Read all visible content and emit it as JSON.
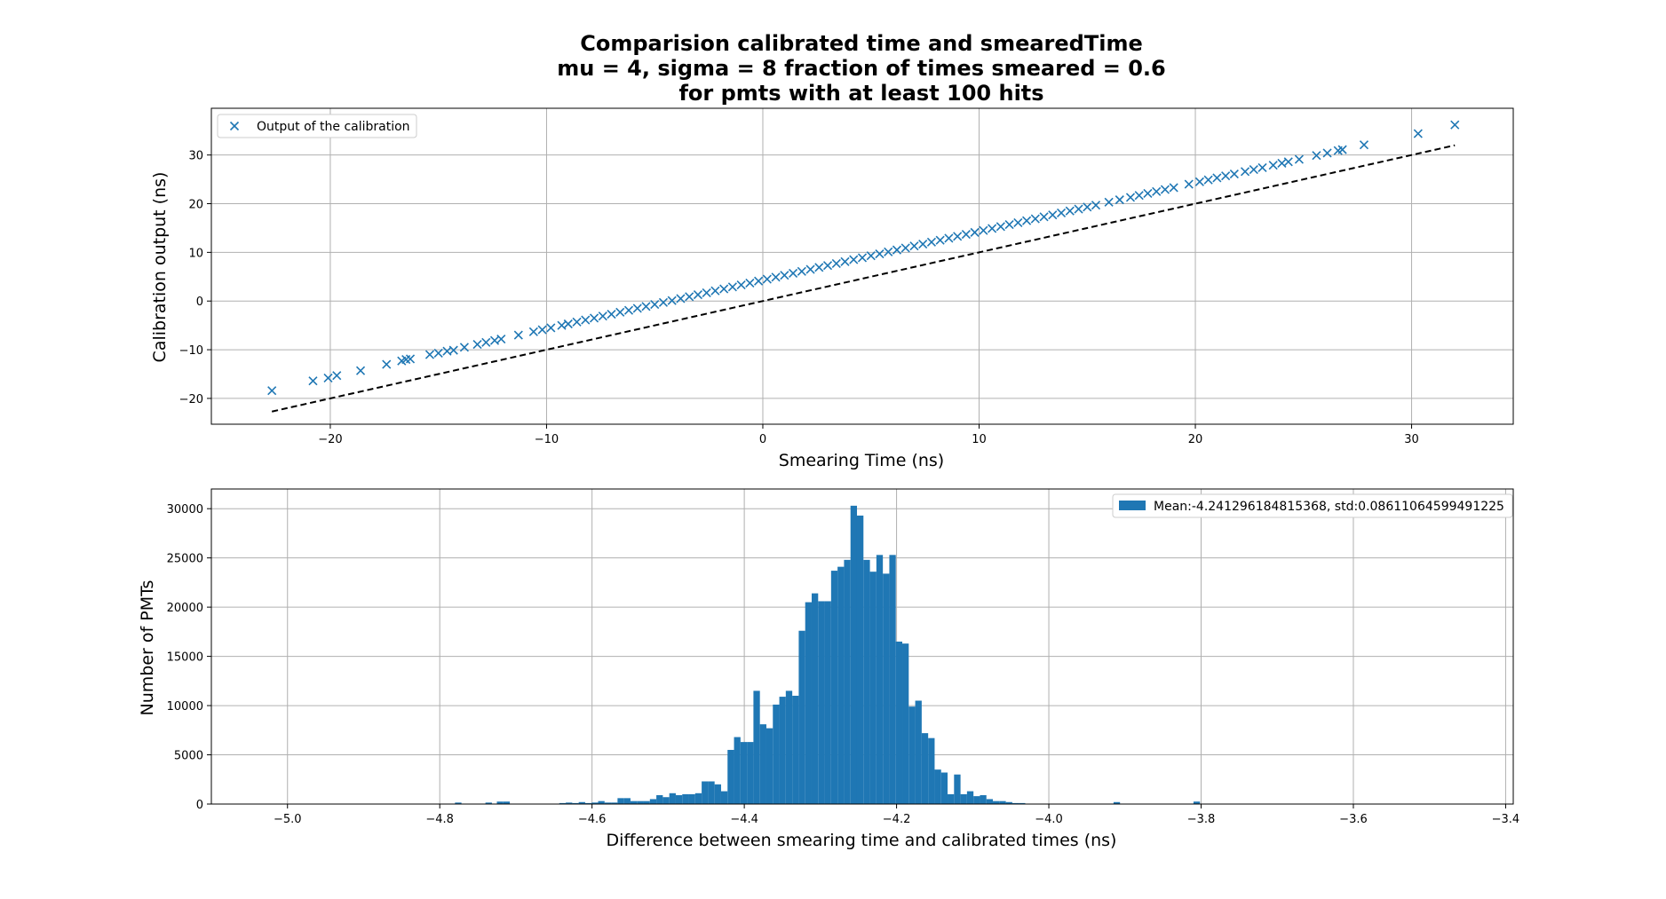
{
  "title_lines": [
    "Comparision calibrated time and smearedTime",
    "mu = 4, sigma = 8 fraction of times smeared = 0.6",
    "for pmts with at least 100 hits"
  ],
  "colors": {
    "series": "#1f77b4",
    "reference_line": "#000000",
    "grid": "#b0b0b0"
  },
  "chart_data": [
    {
      "type": "scatter",
      "xlabel": "Smearing Time (ns)",
      "ylabel": "Calibration output (ns)",
      "xlim": [
        -25.5,
        34.7
      ],
      "ylim": [
        -25.3,
        39.6
      ],
      "xticks": [
        -20,
        -10,
        0,
        10,
        20,
        30
      ],
      "yticks": [
        -20,
        -10,
        0,
        10,
        20,
        30
      ],
      "xtick_labels": [
        "−20",
        "−10",
        "0",
        "10",
        "20",
        "30"
      ],
      "ytick_labels": [
        "−20",
        "−10",
        "0",
        "10",
        "20",
        "30"
      ],
      "grid": true,
      "legend_position": "top-left",
      "marker": "x",
      "series": [
        {
          "name": "Output of the calibration",
          "x": [
            -22.7,
            -20.8,
            -20.1,
            -19.7,
            -18.6,
            -17.4,
            -16.7,
            -16.5,
            -16.3,
            -15.4,
            -15.0,
            -14.6,
            -14.3,
            -13.8,
            -13.2,
            -12.8,
            -12.4,
            -12.1,
            -11.3,
            -10.6,
            -10.2,
            -9.8,
            -9.3,
            -9.0,
            -8.6,
            -8.2,
            -7.8,
            -7.4,
            -7.0,
            -6.6,
            -6.2,
            -5.8,
            -5.4,
            -5.0,
            -4.6,
            -4.2,
            -3.8,
            -3.4,
            -3.0,
            -2.6,
            -2.2,
            -1.8,
            -1.4,
            -1.0,
            -0.6,
            -0.2,
            0.2,
            0.6,
            1.0,
            1.4,
            1.8,
            2.2,
            2.6,
            3.0,
            3.4,
            3.8,
            4.2,
            4.6,
            5.0,
            5.4,
            5.8,
            6.2,
            6.6,
            7.0,
            7.4,
            7.8,
            8.2,
            8.6,
            9.0,
            9.4,
            9.8,
            10.2,
            10.6,
            11.0,
            11.4,
            11.8,
            12.2,
            12.6,
            13.0,
            13.4,
            13.8,
            14.2,
            14.6,
            15.0,
            15.4,
            16.0,
            16.5,
            17.0,
            17.4,
            17.8,
            18.2,
            18.6,
            19.0,
            19.7,
            20.2,
            20.6,
            21.0,
            21.4,
            21.8,
            22.3,
            22.7,
            23.1,
            23.6,
            24.0,
            24.3,
            24.8,
            25.6,
            26.1,
            26.6,
            26.8,
            27.8,
            30.3,
            32.0
          ],
          "y": [
            -18.4,
            -16.4,
            -15.8,
            -15.3,
            -14.3,
            -13.0,
            -12.3,
            -12.0,
            -11.9,
            -11.0,
            -10.7,
            -10.3,
            -10.1,
            -9.5,
            -8.9,
            -8.5,
            -8.1,
            -7.8,
            -7.0,
            -6.3,
            -5.9,
            -5.5,
            -5.0,
            -4.7,
            -4.3,
            -3.9,
            -3.5,
            -3.1,
            -2.7,
            -2.3,
            -1.9,
            -1.5,
            -1.1,
            -0.7,
            -0.3,
            0.1,
            0.5,
            0.9,
            1.3,
            1.7,
            2.1,
            2.5,
            2.9,
            3.3,
            3.7,
            4.1,
            4.5,
            4.9,
            5.3,
            5.7,
            6.1,
            6.5,
            6.9,
            7.3,
            7.7,
            8.1,
            8.5,
            8.9,
            9.3,
            9.7,
            10.1,
            10.5,
            10.9,
            11.3,
            11.7,
            12.1,
            12.5,
            12.9,
            13.3,
            13.7,
            14.1,
            14.5,
            14.9,
            15.3,
            15.7,
            16.1,
            16.5,
            16.9,
            17.3,
            17.7,
            18.1,
            18.5,
            18.9,
            19.3,
            19.7,
            20.3,
            20.8,
            21.3,
            21.7,
            22.1,
            22.5,
            22.9,
            23.3,
            24.0,
            24.5,
            24.9,
            25.3,
            25.7,
            26.1,
            26.6,
            27.0,
            27.4,
            27.9,
            28.3,
            28.6,
            29.1,
            29.9,
            30.4,
            30.9,
            31.1,
            32.1,
            34.4,
            36.2
          ]
        }
      ],
      "reference_line": {
        "x": [
          -22.7,
          32.0
        ],
        "y": [
          -22.7,
          32.0
        ],
        "style": "dashed"
      }
    },
    {
      "type": "bar",
      "subtype": "histogram",
      "xlabel": "Difference between smearing time and calibrated times (ns)",
      "ylabel": "Number of PMTs",
      "xlim": [
        -5.1,
        -3.39
      ],
      "ylim": [
        0,
        32000
      ],
      "xticks": [
        -5.0,
        -4.8,
        -4.6,
        -4.4,
        -4.2,
        -4.0,
        -3.8,
        -3.6,
        -3.4
      ],
      "yticks": [
        0,
        5000,
        10000,
        15000,
        20000,
        25000,
        30000
      ],
      "xtick_labels": [
        "−5.0",
        "−4.8",
        "−4.6",
        "−4.4",
        "−4.2",
        "−4.0",
        "−3.8",
        "−3.6",
        "−3.4"
      ],
      "ytick_labels": [
        "0",
        "5000",
        "10000",
        "15000",
        "20000",
        "25000",
        "30000"
      ],
      "grid": true,
      "legend_position": "top-right",
      "bin_width": 0.0085,
      "bins_left": [
        -4.78,
        -4.74,
        -4.725,
        -4.7165,
        -4.643,
        -4.6345,
        -4.626,
        -4.6175,
        -4.609,
        -4.6005,
        -4.592,
        -4.5835,
        -4.575,
        -4.5665,
        -4.558,
        -4.5495,
        -4.541,
        -4.5325,
        -4.524,
        -4.5155,
        -4.507,
        -4.4985,
        -4.49,
        -4.4815,
        -4.473,
        -4.4645,
        -4.456,
        -4.4475,
        -4.439,
        -4.4305,
        -4.422,
        -4.4135,
        -4.405,
        -4.3965,
        -4.388,
        -4.3795,
        -4.371,
        -4.3625,
        -4.354,
        -4.3455,
        -4.337,
        -4.3285,
        -4.32,
        -4.3115,
        -4.303,
        -4.2945,
        -4.286,
        -4.2775,
        -4.269,
        -4.2605,
        -4.252,
        -4.2435,
        -4.235,
        -4.2265,
        -4.218,
        -4.2095,
        -4.201,
        -4.1925,
        -4.184,
        -4.1755,
        -4.167,
        -4.1585,
        -4.15,
        -4.1415,
        -4.133,
        -4.1245,
        -4.116,
        -4.1075,
        -4.099,
        -4.0905,
        -4.082,
        -4.0735,
        -4.065,
        -4.0565,
        -4.048,
        -4.0395,
        -3.915,
        -3.81
      ],
      "counts": [
        150,
        150,
        250,
        250,
        100,
        150,
        100,
        200,
        100,
        150,
        300,
        150,
        150,
        600,
        600,
        300,
        300,
        300,
        500,
        900,
        700,
        1100,
        900,
        1000,
        1000,
        1100,
        2300,
        2300,
        2000,
        1300,
        5500,
        6800,
        6300,
        6300,
        11500,
        8100,
        7700,
        10100,
        10900,
        11500,
        11000,
        17600,
        20500,
        21400,
        20600,
        20600,
        23700,
        24100,
        24800,
        30300,
        29300,
        24800,
        23600,
        25300,
        23400,
        25300,
        16500,
        16300,
        9900,
        10500,
        7200,
        6700,
        3500,
        3200,
        1000,
        3000,
        1000,
        1300,
        800,
        900,
        500,
        300,
        300,
        200,
        100,
        100,
        200,
        250
      ],
      "series": [
        {
          "name": "Mean:-4.241296184815368, std:0.08611064599491225"
        }
      ]
    }
  ]
}
